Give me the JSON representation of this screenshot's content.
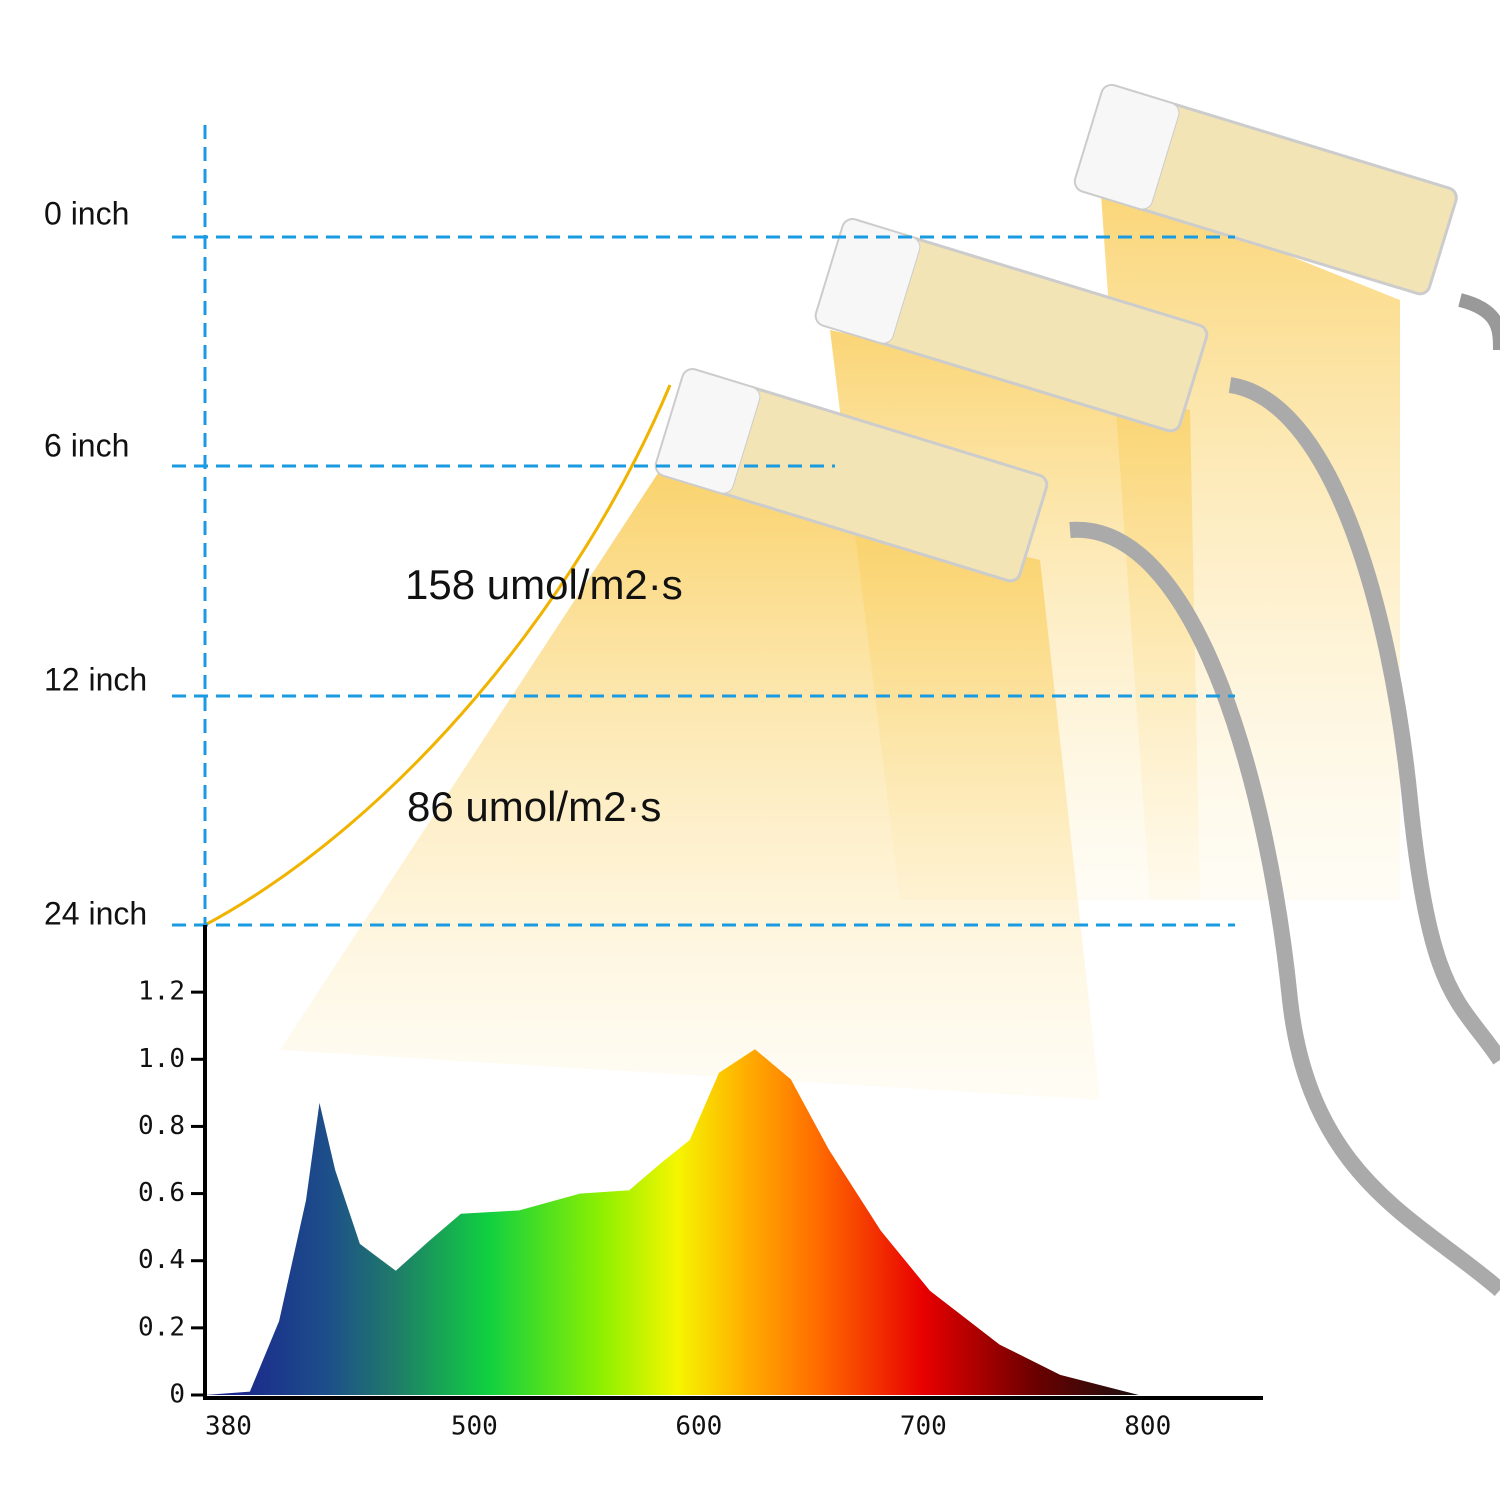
{
  "chart_data": {
    "type": "area",
    "x": [
      380,
      400,
      413,
      425,
      431,
      438,
      449,
      465,
      480,
      494,
      520,
      547,
      569,
      583,
      596,
      609,
      625,
      641,
      658,
      681,
      703,
      734,
      761,
      796
    ],
    "values": [
      0,
      0.01,
      0.22,
      0.58,
      0.87,
      0.67,
      0.45,
      0.37,
      0.46,
      0.54,
      0.55,
      0.6,
      0.61,
      0.69,
      0.76,
      0.96,
      1.03,
      0.94,
      0.73,
      0.49,
      0.31,
      0.15,
      0.06,
      0
    ],
    "xlim": [
      380,
      850
    ],
    "xticks": [
      380,
      500,
      600,
      700,
      800
    ],
    "ylim": [
      0,
      1.4
    ],
    "yticks": [
      0,
      0.2,
      0.4,
      0.6,
      0.8,
      {
        "value": 1.0,
        "label": "1.0"
      },
      1.2
    ]
  },
  "distance_labels": [
    "0 inch",
    "6 inch",
    "12 inch",
    "24 inch"
  ],
  "ppfd_labels": [
    "158 umol/m2·s",
    "86 umol/m2·s"
  ]
}
